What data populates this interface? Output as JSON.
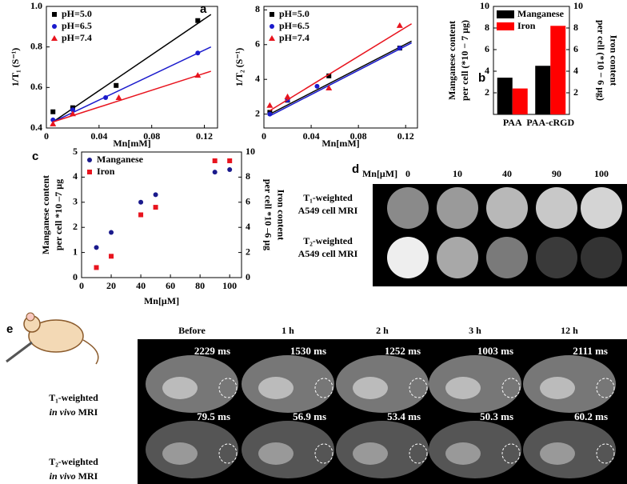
{
  "chart_data": [
    {
      "type": "scatter",
      "xlabel": "Mn[mM]",
      "ylabel": "1/T₁ (S⁻¹)",
      "xlim": [
        0,
        0.13
      ],
      "xticks": [
        0,
        0.04,
        0.08,
        0.12
      ],
      "ylim": [
        0.4,
        1.0
      ],
      "yticks": [
        0.4,
        0.6,
        0.8,
        {
          "value": 1,
          "label": "1.0"
        }
      ],
      "fit_x": [
        0.005,
        0.125
      ],
      "series": [
        {
          "name": "pH=5.0",
          "color": "#000000",
          "marker": "square",
          "x": [
            0.005,
            0.02,
            0.053,
            0.115
          ],
          "values": [
            0.48,
            0.5,
            0.61,
            0.93
          ],
          "fit": [
            0.43,
            0.96
          ]
        },
        {
          "name": "pH=6.5",
          "color": "#1a1acc",
          "marker": "circle",
          "x": [
            0.005,
            0.02,
            0.045,
            0.115
          ],
          "values": [
            0.44,
            0.49,
            0.55,
            0.77
          ],
          "fit": [
            0.43,
            0.8
          ]
        },
        {
          "name": "pH=7.4",
          "color": "#e8141e",
          "marker": "triangle",
          "x": [
            0.005,
            0.02,
            0.055,
            0.115
          ],
          "values": [
            0.42,
            0.47,
            0.55,
            0.66
          ],
          "fit": [
            0.43,
            0.68
          ]
        }
      ]
    },
    {
      "type": "scatter",
      "xlabel": "Mn[mM]",
      "ylabel": "1/T₂ (S⁻¹)",
      "xlim": [
        0,
        0.13
      ],
      "xticks": [
        0,
        0.04,
        0.08,
        0.12
      ],
      "ylim": [
        1.2,
        8.2
      ],
      "yticks": [
        2,
        4,
        6,
        8
      ],
      "fit_x": [
        0.005,
        0.125
      ],
      "series": [
        {
          "name": "pH=5.0",
          "color": "#000000",
          "marker": "square",
          "x": [
            0.005,
            0.02,
            0.055,
            0.115
          ],
          "values": [
            2.1,
            2.8,
            4.2,
            5.8
          ],
          "fit": [
            2.0,
            6.2
          ]
        },
        {
          "name": "pH=6.5",
          "color": "#1a1acc",
          "marker": "circle",
          "x": [
            0.005,
            0.02,
            0.045,
            0.115
          ],
          "values": [
            2.0,
            2.8,
            3.6,
            5.8
          ],
          "fit": [
            1.9,
            6.1
          ]
        },
        {
          "name": "pH=7.4",
          "color": "#e8141e",
          "marker": "triangle",
          "x": [
            0.005,
            0.02,
            0.055,
            0.115
          ],
          "values": [
            2.5,
            3.0,
            3.5,
            7.1
          ],
          "fit": [
            2.2,
            7.2
          ]
        }
      ]
    },
    {
      "type": "bar",
      "categories": [
        "PAA",
        "PAA-cRGD"
      ],
      "ylabel": [
        "Manganese content",
        "per cell (*10 − 7 μg)"
      ],
      "y2label": [
        "per cell (*10 − 6 μg)",
        "Iron content"
      ],
      "ylim": [
        0,
        10
      ],
      "yticks": [
        2,
        4,
        6,
        8,
        10
      ],
      "y2lim": [
        0,
        10
      ],
      "y2ticks": [
        2,
        4,
        6,
        8,
        10
      ],
      "series": [
        {
          "name": "Manganese",
          "color": "#000000",
          "values": [
            3.4,
            4.5
          ]
        },
        {
          "name": "Iron",
          "color": "#ff0000",
          "axis": "y2",
          "values": [
            2.4,
            8.2
          ]
        }
      ]
    },
    {
      "type": "scatter",
      "xlabel": "Mn[μM]",
      "ylabel": [
        "Manganese content",
        "per cell *10 ‒7 μg"
      ],
      "y2label": [
        "per cell *10 ‒6 μg",
        "Iron content"
      ],
      "xlim": [
        0,
        108
      ],
      "xticks": [
        0,
        20,
        40,
        60,
        80,
        100
      ],
      "ylim": [
        0,
        5
      ],
      "yticks": [
        0,
        1,
        2,
        3,
        4,
        5
      ],
      "y2lim": [
        0,
        10
      ],
      "y2ticks": [
        0,
        2,
        4,
        6,
        8,
        10
      ],
      "series": [
        {
          "name": "Manganese",
          "color": "#1a1a8c",
          "marker": "circle",
          "x": [
            10,
            20,
            40,
            50,
            90,
            100
          ],
          "values": [
            1.2,
            1.8,
            3.0,
            3.3,
            4.2,
            4.3
          ]
        },
        {
          "name": "Iron",
          "color": "#e8141e",
          "marker": "square",
          "axis": "y2",
          "x": [
            10,
            20,
            40,
            50,
            90,
            100
          ],
          "values": [
            0.8,
            1.7,
            5.0,
            5.6,
            9.3,
            9.3
          ]
        }
      ]
    }
  ],
  "panel_labels": [
    "a",
    "b",
    "c",
    "d",
    "e"
  ],
  "panel_d": {
    "axis_label": "Mn[μM]",
    "columns": [
      "0",
      "10",
      "40",
      "90",
      "100"
    ],
    "rows": [
      [
        "T₁-weighted",
        "A549 cell MRI"
      ],
      [
        "T₂-weighted",
        "A549 cell MRI"
      ]
    ]
  },
  "panel_e": {
    "columns": [
      "Before",
      "1 h",
      "2 h",
      "3 h",
      "12 h"
    ],
    "rows": [
      {
        "label": "T₁-weighted",
        "italic": "in vivo",
        "rest": "MRI",
        "times": [
          "2229 ms",
          "1530 ms",
          "1252 ms",
          "1003 ms",
          "2111 ms"
        ]
      },
      {
        "label": "T₂-weighted",
        "italic": "in vivo",
        "rest": "MRI",
        "times": [
          "79.5 ms",
          "56.9 ms",
          "53.4 ms",
          "50.3 ms",
          "60.2 ms"
        ]
      }
    ]
  }
}
